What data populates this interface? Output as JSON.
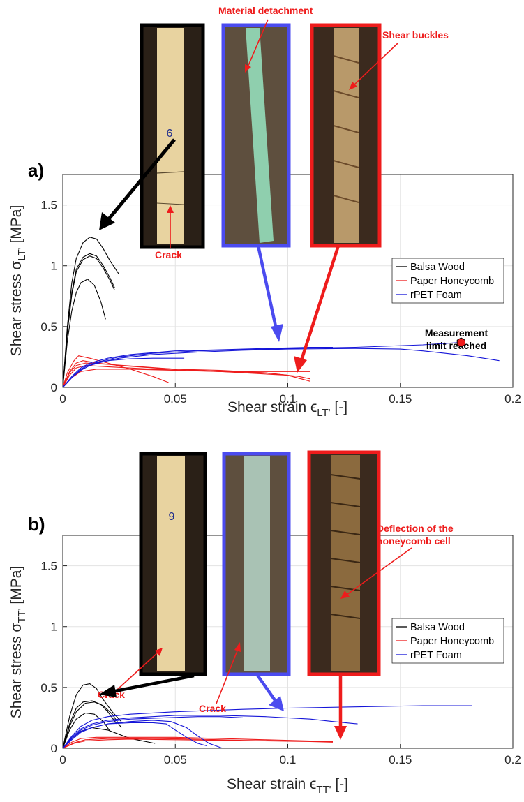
{
  "chart_data": [
    {
      "type": "line",
      "panel_label": "a)",
      "xlabel_main": "Shear strain ",
      "xlabel_sym": "ϵ",
      "xlabel_sub": "LT'",
      "xlabel_unit": " [-]",
      "ylabel_main": "Shear stress ",
      "ylabel_sym": "σ",
      "ylabel_sub": "LT'",
      "ylabel_unit": " [MPa]",
      "xlim": [
        0,
        0.2
      ],
      "ylim": [
        0,
        1.75
      ],
      "xticks": [
        0,
        0.05,
        0.1,
        0.15,
        0.2
      ],
      "xtick_labels": [
        "0",
        "0.05",
        "0.1",
        "0.15",
        "0.2"
      ],
      "yticks": [
        0,
        0.5,
        1,
        1.5
      ],
      "ytick_labels": [
        "0",
        "0.5",
        "1",
        "1.5"
      ],
      "grid": true,
      "legend_position": "right",
      "legend": [
        {
          "label": "Balsa Wood",
          "color": "#000000"
        },
        {
          "label": "Paper Honeycomb",
          "color": "#ee1c1c"
        },
        {
          "label": "rPET Foam",
          "color": "#1515d8"
        }
      ],
      "series": [
        {
          "group": "Balsa Wood",
          "color": "#000000",
          "x": [
            0,
            0.002,
            0.004,
            0.006,
            0.009,
            0.012,
            0.015,
            0.018,
            0.021,
            0.025
          ],
          "y": [
            0,
            0.5,
            0.86,
            1.06,
            1.19,
            1.235,
            1.22,
            1.14,
            1.04,
            0.93
          ]
        },
        {
          "group": "Balsa Wood",
          "color": "#000000",
          "x": [
            0,
            0.002,
            0.004,
            0.006,
            0.009,
            0.012,
            0.015,
            0.018,
            0.021,
            0.023
          ],
          "y": [
            0,
            0.46,
            0.78,
            0.97,
            1.07,
            1.1,
            1.08,
            1.0,
            0.9,
            0.82
          ]
        },
        {
          "group": "Balsa Wood",
          "color": "#000000",
          "x": [
            0,
            0.002,
            0.004,
            0.006,
            0.009,
            0.012,
            0.015,
            0.018,
            0.021,
            0.023
          ],
          "y": [
            0,
            0.45,
            0.76,
            0.95,
            1.05,
            1.08,
            1.06,
            0.98,
            0.88,
            0.8
          ]
        },
        {
          "group": "Balsa Wood",
          "color": "#000000",
          "x": [
            0,
            0.002,
            0.004,
            0.006,
            0.008,
            0.011,
            0.014,
            0.017,
            0.019
          ],
          "y": [
            0,
            0.38,
            0.63,
            0.78,
            0.86,
            0.89,
            0.84,
            0.7,
            0.56
          ]
        },
        {
          "group": "Paper Honeycomb",
          "color": "#ee1c1c",
          "x": [
            0,
            0.002,
            0.005,
            0.007,
            0.012,
            0.02,
            0.03,
            0.04,
            0.047
          ],
          "y": [
            0,
            0.12,
            0.22,
            0.26,
            0.24,
            0.2,
            0.15,
            0.09,
            0.04
          ]
        },
        {
          "group": "Paper Honeycomb",
          "color": "#ee1c1c",
          "x": [
            0,
            0.003,
            0.006,
            0.009,
            0.015,
            0.025,
            0.04,
            0.06,
            0.08,
            0.1,
            0.11
          ],
          "y": [
            0,
            0.13,
            0.2,
            0.22,
            0.2,
            0.18,
            0.16,
            0.14,
            0.12,
            0.1,
            0.05
          ]
        },
        {
          "group": "Paper Honeycomb",
          "color": "#ee1c1c",
          "x": [
            0,
            0.003,
            0.006,
            0.01,
            0.02,
            0.035,
            0.05,
            0.07,
            0.09,
            0.105,
            0.11
          ],
          "y": [
            0,
            0.12,
            0.18,
            0.2,
            0.19,
            0.17,
            0.15,
            0.14,
            0.12,
            0.09,
            0.07
          ]
        },
        {
          "group": "Paper Honeycomb",
          "color": "#ee1c1c",
          "x": [
            0,
            0.003,
            0.006,
            0.01,
            0.02,
            0.04,
            0.07,
            0.09,
            0.1,
            0.108
          ],
          "y": [
            0,
            0.1,
            0.16,
            0.18,
            0.17,
            0.15,
            0.13,
            0.12,
            0.1,
            0.06
          ]
        },
        {
          "group": "Paper Honeycomb",
          "color": "#ee1c1c",
          "x": [
            0,
            0.004,
            0.008,
            0.015,
            0.03,
            0.05,
            0.07,
            0.09,
            0.11
          ],
          "y": [
            0,
            0.08,
            0.13,
            0.15,
            0.15,
            0.14,
            0.13,
            0.13,
            0.13
          ]
        },
        {
          "group": "rPET Foam",
          "color": "#1515d8",
          "x": [
            0,
            0.004,
            0.008,
            0.012,
            0.018,
            0.025,
            0.04,
            0.06,
            0.08,
            0.1,
            0.13,
            0.16,
            0.177
          ],
          "y": [
            0,
            0.08,
            0.15,
            0.19,
            0.22,
            0.25,
            0.28,
            0.3,
            0.31,
            0.32,
            0.33,
            0.35,
            0.37
          ]
        },
        {
          "group": "rPET Foam",
          "color": "#1515d8",
          "x": [
            0,
            0.004,
            0.008,
            0.012,
            0.018,
            0.025,
            0.04,
            0.06,
            0.08,
            0.1,
            0.13,
            0.15,
            0.16,
            0.17,
            0.18,
            0.194
          ],
          "y": [
            0,
            0.08,
            0.14,
            0.18,
            0.21,
            0.24,
            0.27,
            0.29,
            0.305,
            0.315,
            0.32,
            0.315,
            0.3,
            0.28,
            0.26,
            0.22
          ]
        },
        {
          "group": "rPET Foam",
          "color": "#1515d8",
          "x": [
            0,
            0.005,
            0.01,
            0.015,
            0.02,
            0.03,
            0.04,
            0.054
          ],
          "y": [
            0,
            0.1,
            0.17,
            0.2,
            0.22,
            0.235,
            0.24,
            0.24
          ]
        },
        {
          "group": "rPET Foam",
          "color": "#1515d8",
          "x": [
            0,
            0.004,
            0.008,
            0.012,
            0.02,
            0.03,
            0.05,
            0.07,
            0.09,
            0.11,
            0.12
          ],
          "y": [
            0,
            0.09,
            0.16,
            0.2,
            0.24,
            0.27,
            0.3,
            0.31,
            0.32,
            0.33,
            0.33
          ]
        }
      ],
      "marker": {
        "x": 0.177,
        "y": 0.37,
        "shape": "hexagon",
        "color": "#ee1c1c"
      },
      "annotations": [
        {
          "text": "Material detachment",
          "color": "red"
        },
        {
          "text": "Shear buckles",
          "color": "red"
        },
        {
          "text": "Crack",
          "color": "red"
        },
        {
          "text": "Measurement",
          "color": "black"
        },
        {
          "text": "limit  reached",
          "color": "black"
        }
      ],
      "photos": [
        {
          "label": "balsa-specimen-photo",
          "frame_color": "#000000",
          "fill": "#e8d3a0"
        },
        {
          "label": "rpet-specimen-photo",
          "frame_color": "#4b4bef",
          "fill": "#8fcfae"
        },
        {
          "label": "honeycomb-specimen-photo",
          "frame_color": "#ee1c1c",
          "fill": "#b8996a"
        }
      ]
    },
    {
      "type": "line",
      "panel_label": "b)",
      "xlabel_main": "Shear strain ",
      "xlabel_sym": "ϵ",
      "xlabel_sub": "TT'",
      "xlabel_unit": " [-]",
      "ylabel_main": "Shear stress ",
      "ylabel_sym": "σ",
      "ylabel_sub": "TT'",
      "ylabel_unit": " [MPa]",
      "xlim": [
        0,
        0.2
      ],
      "ylim": [
        0,
        1.75
      ],
      "xticks": [
        0,
        0.05,
        0.1,
        0.15,
        0.2
      ],
      "xtick_labels": [
        "0",
        "0.05",
        "0.1",
        "0.15",
        "0.2"
      ],
      "yticks": [
        0,
        0.5,
        1,
        1.5
      ],
      "ytick_labels": [
        "0",
        "0.5",
        "1",
        "1.5"
      ],
      "grid": true,
      "legend_position": "right",
      "legend": [
        {
          "label": "Balsa Wood",
          "color": "#000000"
        },
        {
          "label": "Paper Honeycomb",
          "color": "#ee1c1c"
        },
        {
          "label": "rPET Foam",
          "color": "#1515d8"
        }
      ],
      "series": [
        {
          "group": "Balsa Wood",
          "color": "#000000",
          "x": [
            0,
            0.003,
            0.006,
            0.009,
            0.012,
            0.015,
            0.018,
            0.022,
            0.026
          ],
          "y": [
            0,
            0.26,
            0.44,
            0.52,
            0.53,
            0.49,
            0.4,
            0.3,
            0.22
          ]
        },
        {
          "group": "Balsa Wood",
          "color": "#000000",
          "x": [
            0,
            0.003,
            0.006,
            0.009,
            0.013,
            0.017,
            0.02,
            0.024
          ],
          "y": [
            0,
            0.2,
            0.33,
            0.38,
            0.39,
            0.36,
            0.3,
            0.2
          ]
        },
        {
          "group": "Balsa Wood",
          "color": "#000000",
          "x": [
            0,
            0.003,
            0.006,
            0.01,
            0.014,
            0.018,
            0.022,
            0.026
          ],
          "y": [
            0,
            0.18,
            0.3,
            0.37,
            0.38,
            0.35,
            0.28,
            0.17
          ]
        },
        {
          "group": "Balsa Wood",
          "color": "#000000",
          "x": [
            0,
            0.003,
            0.006,
            0.01,
            0.014,
            0.018,
            0.021
          ],
          "y": [
            0,
            0.15,
            0.24,
            0.29,
            0.28,
            0.22,
            0.14
          ]
        },
        {
          "group": "Balsa Wood",
          "color": "#000000",
          "x": [
            0,
            0.004,
            0.008,
            0.013,
            0.02,
            0.03,
            0.041
          ],
          "y": [
            0,
            0.08,
            0.14,
            0.17,
            0.15,
            0.08,
            0.04
          ]
        },
        {
          "group": "Paper Honeycomb",
          "color": "#ee1c1c",
          "x": [
            0,
            0.004,
            0.008,
            0.015,
            0.03,
            0.05,
            0.07,
            0.09,
            0.11,
            0.125
          ],
          "y": [
            0,
            0.05,
            0.08,
            0.09,
            0.09,
            0.09,
            0.08,
            0.07,
            0.06,
            0.06
          ]
        },
        {
          "group": "Paper Honeycomb",
          "color": "#ee1c1c",
          "x": [
            0,
            0.005,
            0.01,
            0.02,
            0.04,
            0.06,
            0.08,
            0.1,
            0.12
          ],
          "y": [
            0,
            0.045,
            0.07,
            0.08,
            0.08,
            0.075,
            0.065,
            0.06,
            0.055
          ]
        },
        {
          "group": "Paper Honeycomb",
          "color": "#ee1c1c",
          "x": [
            0,
            0.005,
            0.01,
            0.02,
            0.03,
            0.05,
            0.07,
            0.09,
            0.11,
            0.12
          ],
          "y": [
            0,
            0.04,
            0.06,
            0.07,
            0.075,
            0.07,
            0.065,
            0.06,
            0.055,
            0.05
          ]
        },
        {
          "group": "rPET Foam",
          "color": "#1515d8",
          "x": [
            0,
            0.004,
            0.008,
            0.013,
            0.02,
            0.03,
            0.05,
            0.08,
            0.1,
            0.13,
            0.16,
            0.182
          ],
          "y": [
            0,
            0.1,
            0.18,
            0.23,
            0.26,
            0.28,
            0.3,
            0.32,
            0.33,
            0.34,
            0.35,
            0.35
          ]
        },
        {
          "group": "rPET Foam",
          "color": "#1515d8",
          "x": [
            0,
            0.004,
            0.008,
            0.013,
            0.02,
            0.03,
            0.05,
            0.07,
            0.09,
            0.11,
            0.12,
            0.131
          ],
          "y": [
            0,
            0.09,
            0.16,
            0.2,
            0.23,
            0.25,
            0.27,
            0.27,
            0.26,
            0.24,
            0.22,
            0.2
          ]
        },
        {
          "group": "rPET Foam",
          "color": "#1515d8",
          "x": [
            0,
            0.004,
            0.008,
            0.013,
            0.02,
            0.03,
            0.045,
            0.06,
            0.07,
            0.08
          ],
          "y": [
            0,
            0.08,
            0.15,
            0.19,
            0.22,
            0.24,
            0.25,
            0.26,
            0.26,
            0.25
          ]
        },
        {
          "group": "rPET Foam",
          "color": "#1515d8",
          "x": [
            0,
            0.004,
            0.008,
            0.013,
            0.02,
            0.03,
            0.04,
            0.046,
            0.05,
            0.055,
            0.06,
            0.064
          ],
          "y": [
            0,
            0.08,
            0.14,
            0.17,
            0.2,
            0.21,
            0.21,
            0.2,
            0.15,
            0.09,
            0.04,
            0.02
          ]
        },
        {
          "group": "rPET Foam",
          "color": "#1515d8",
          "x": [
            0,
            0.004,
            0.008,
            0.013,
            0.02,
            0.03,
            0.04,
            0.048,
            0.055,
            0.06,
            0.065,
            0.071
          ],
          "y": [
            0,
            0.07,
            0.13,
            0.17,
            0.2,
            0.22,
            0.23,
            0.22,
            0.17,
            0.1,
            0.04,
            0.0
          ]
        }
      ],
      "annotations": [
        {
          "text": "Deflection of the",
          "color": "red"
        },
        {
          "text": "honeycomb cell",
          "color": "red"
        },
        {
          "text": "Crack",
          "color": "red"
        },
        {
          "text": "Crack",
          "color": "red"
        }
      ],
      "photos": [
        {
          "label": "balsa-specimen-photo",
          "frame_color": "#000000",
          "fill": "#e8d3a0"
        },
        {
          "label": "rpet-specimen-photo",
          "frame_color": "#4b4bef",
          "fill": "#a9c2b4"
        },
        {
          "label": "honeycomb-specimen-photo",
          "frame_color": "#ee1c1c",
          "fill": "#8b6a3e"
        }
      ]
    }
  ]
}
